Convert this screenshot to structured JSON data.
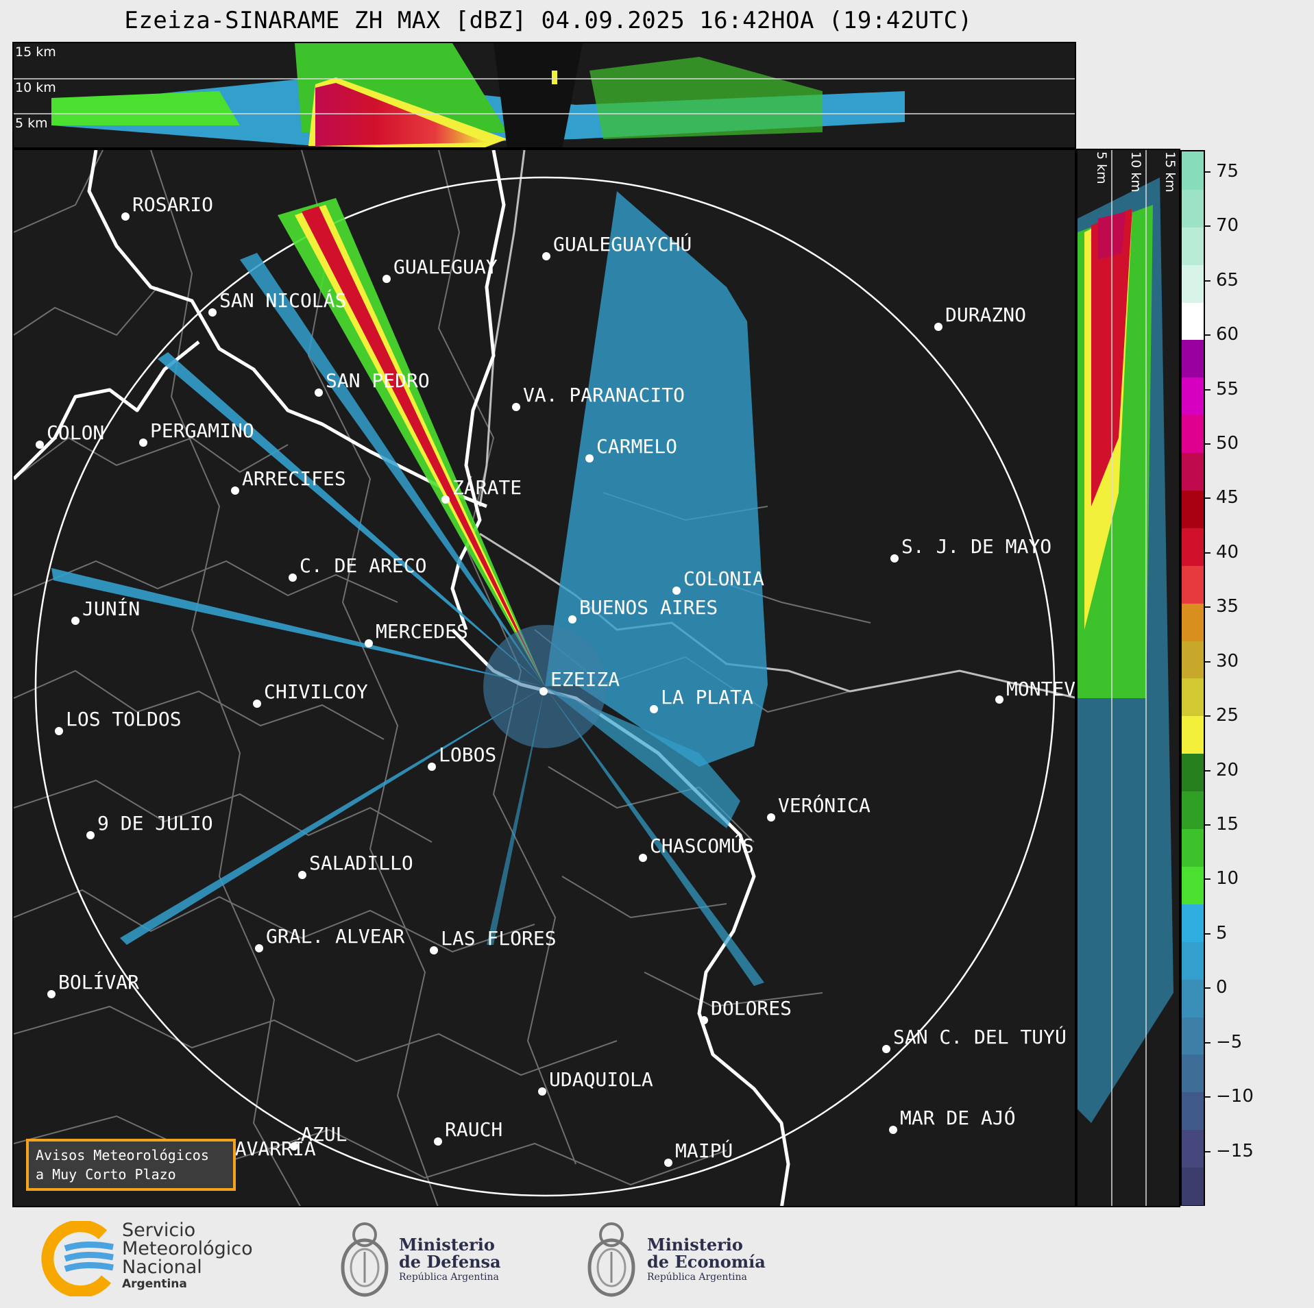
{
  "title": "Ezeiza-SINARAME ZH MAX [dBZ] 04.09.2025 16:42HOA (19:42UTC)",
  "top_panel": {
    "height_labels": [
      "15 km",
      "10 km",
      "5 km"
    ]
  },
  "side_panel": {
    "height_labels": [
      "5 km",
      "10 km",
      "15 km"
    ]
  },
  "colorbar": {
    "unit": "dBZ",
    "ticks": [
      "75",
      "70",
      "65",
      "60",
      "55",
      "50",
      "45",
      "40",
      "35",
      "30",
      "25",
      "20",
      "15",
      "10",
      "5",
      "0",
      "−5",
      "−10",
      "−15"
    ],
    "tick_values": [
      75,
      70,
      65,
      60,
      55,
      50,
      45,
      40,
      35,
      30,
      25,
      20,
      15,
      10,
      5,
      0,
      -5,
      -10,
      -15
    ],
    "range": [
      -20,
      77
    ],
    "colors": [
      "#3d3d6d",
      "#46477c",
      "#3f5a8a",
      "#3e6d98",
      "#3e7fa7",
      "#3a8fb8",
      "#339fcc",
      "#2eaddf",
      "#4be02f",
      "#3ec22b",
      "#2fa024",
      "#27801e",
      "#f2f03a",
      "#d2c832",
      "#c7a82a",
      "#d88f1d",
      "#e63a3e",
      "#d1112c",
      "#a90012",
      "#bf0b4e",
      "#e00090",
      "#d600c0",
      "#9a00a0",
      "#ffffff",
      "#d8f3e8",
      "#b8ecd7",
      "#9be3c4",
      "#86dcbb"
    ]
  },
  "cities": [
    {
      "name": "ROSARIO"
    },
    {
      "name": "GUALEGUAYCHÚ"
    },
    {
      "name": "GUALEGUAY"
    },
    {
      "name": "SAN NICOLÁS"
    },
    {
      "name": "DURAZNO"
    },
    {
      "name": "SAN PEDRO"
    },
    {
      "name": "VA. PARANACITO"
    },
    {
      "name": "COLON"
    },
    {
      "name": "PERGAMINO"
    },
    {
      "name": "CARMELO"
    },
    {
      "name": "ARRECIFES"
    },
    {
      "name": "ZÁRATE"
    },
    {
      "name": "S. J. DE MAYO"
    },
    {
      "name": "C. DE ARECO"
    },
    {
      "name": "COLONIA"
    },
    {
      "name": "JUNÍN"
    },
    {
      "name": "BUENOS AIRES"
    },
    {
      "name": "MERCEDES"
    },
    {
      "name": "EZEIZA"
    },
    {
      "name": "MONTEVIDEO"
    },
    {
      "name": "CHIVILCOY"
    },
    {
      "name": "LA PLATA"
    },
    {
      "name": "LOS TOLDOS"
    },
    {
      "name": "LOBOS"
    },
    {
      "name": "VERÓNICA"
    },
    {
      "name": "9 DE JULIO"
    },
    {
      "name": "CHASCOMÚS"
    },
    {
      "name": "SALADILLO"
    },
    {
      "name": "GRAL. ALVEAR"
    },
    {
      "name": "LAS FLORES"
    },
    {
      "name": "BOLÍVAR"
    },
    {
      "name": "DOLORES"
    },
    {
      "name": "SAN C. DEL TUYÚ"
    },
    {
      "name": "UDAQUIOLA"
    },
    {
      "name": "MAR DE AJÓ"
    },
    {
      "name": "RAUCH"
    },
    {
      "name": "AZUL"
    },
    {
      "name": "OLAVARRÍA"
    },
    {
      "name": "MAIPÚ"
    }
  ],
  "notice": {
    "line1": "Avisos Meteorológicos",
    "line2": "a Muy Corto Plazo",
    "border_color": "#f5a21d"
  },
  "footer": {
    "smn": {
      "line1": "Servicio",
      "line2": "Meteorológico",
      "line3": "Nacional",
      "line4": "Argentina"
    },
    "defensa": {
      "line1": "Ministerio",
      "line2": "de Defensa",
      "line3": "República Argentina"
    },
    "economia": {
      "line1": "Ministerio",
      "line2": "de Economía",
      "line3": "República Argentina"
    }
  }
}
